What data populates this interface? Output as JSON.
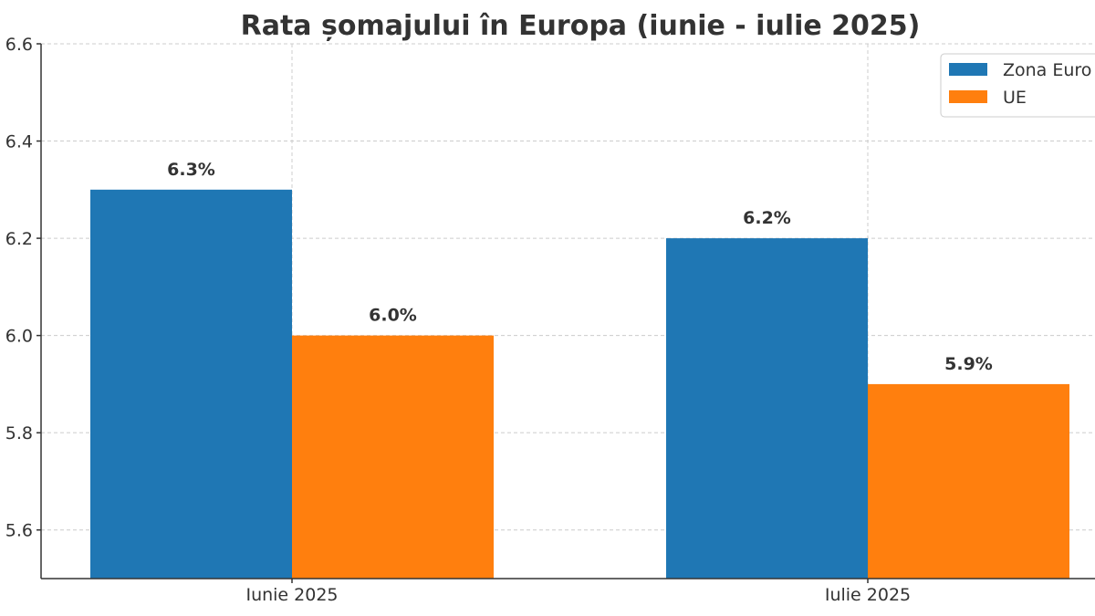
{
  "chart_data": {
    "type": "bar",
    "title": "Rata șomajului în Europa (iunie - iulie 2025)",
    "xlabel": "",
    "ylabel": "",
    "categories": [
      "Iunie 2025",
      "Iulie 2025"
    ],
    "series": [
      {
        "name": "Zona Euro",
        "values": [
          6.3,
          6.2
        ],
        "labels": [
          "6.3%",
          "6.2%"
        ],
        "color": "#1f77b4"
      },
      {
        "name": "UE",
        "values": [
          6.0,
          5.9
        ],
        "labels": [
          "6.0%",
          "5.9%"
        ],
        "color": "#ff7f0e"
      }
    ],
    "ylim": [
      5.5,
      6.6
    ],
    "yticks": [
      "5.6",
      "5.8",
      "6.0",
      "6.2",
      "6.4",
      "6.6"
    ],
    "grid": true,
    "legend_position": "top-right"
  }
}
